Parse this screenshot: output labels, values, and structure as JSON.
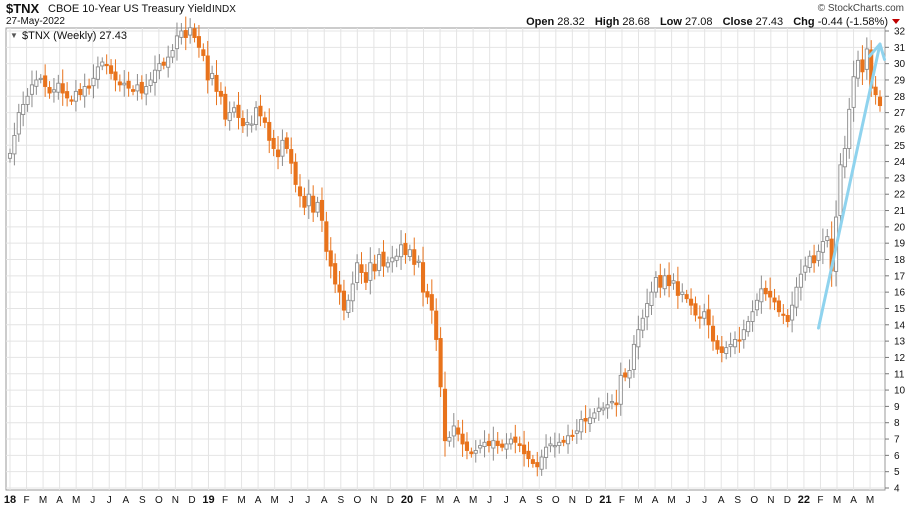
{
  "header": {
    "symbol": "$TNX",
    "name": "CBOE 10-Year US Treasury Yield",
    "exchange": "INDX",
    "date": "27-May-2022",
    "logo_text": "© StockCharts.com",
    "open_label": "Open",
    "open_value": "28.32",
    "high_label": "High",
    "high_value": "28.68",
    "low_label": "Low",
    "low_value": "27.08",
    "close_label": "Close",
    "close_value": "27.43",
    "chg_label": "Chg",
    "chg_value": "-0.44 (-1.58%)"
  },
  "legend": {
    "text": "$TNX (Weekly) 27.43"
  },
  "colors": {
    "up": "#8c8c8c",
    "down": "#e8731c",
    "arrow": "#8fd3ee",
    "grid": "#e4e4e4"
  },
  "chart_data": {
    "type": "candlestick",
    "title": "$TNX (Weekly) 27.43",
    "xlabel": "",
    "ylabel": "",
    "ylim": [
      4,
      32
    ],
    "y_ticks": [
      4,
      5,
      6,
      7,
      8,
      9,
      10,
      11,
      12,
      13,
      14,
      15,
      16,
      17,
      18,
      19,
      20,
      21,
      22,
      23,
      24,
      25,
      26,
      27,
      28,
      29,
      30,
      31,
      32
    ],
    "x_ticks": [
      {
        "label": "18",
        "pos": 0,
        "bold": true
      },
      {
        "label": "F",
        "pos": 1
      },
      {
        "label": "M",
        "pos": 2
      },
      {
        "label": "A",
        "pos": 3
      },
      {
        "label": "M",
        "pos": 4
      },
      {
        "label": "J",
        "pos": 5
      },
      {
        "label": "J",
        "pos": 6
      },
      {
        "label": "A",
        "pos": 7
      },
      {
        "label": "S",
        "pos": 8
      },
      {
        "label": "O",
        "pos": 9
      },
      {
        "label": "N",
        "pos": 10
      },
      {
        "label": "D",
        "pos": 11
      },
      {
        "label": "19",
        "pos": 12,
        "bold": true
      },
      {
        "label": "F",
        "pos": 13
      },
      {
        "label": "M",
        "pos": 14
      },
      {
        "label": "A",
        "pos": 15
      },
      {
        "label": "M",
        "pos": 16
      },
      {
        "label": "J",
        "pos": 17
      },
      {
        "label": "J",
        "pos": 18
      },
      {
        "label": "A",
        "pos": 19
      },
      {
        "label": "S",
        "pos": 20
      },
      {
        "label": "O",
        "pos": 21
      },
      {
        "label": "N",
        "pos": 22
      },
      {
        "label": "D",
        "pos": 23
      },
      {
        "label": "20",
        "pos": 24,
        "bold": true
      },
      {
        "label": "F",
        "pos": 25
      },
      {
        "label": "M",
        "pos": 26
      },
      {
        "label": "A",
        "pos": 27
      },
      {
        "label": "M",
        "pos": 28
      },
      {
        "label": "J",
        "pos": 29
      },
      {
        "label": "J",
        "pos": 30
      },
      {
        "label": "A",
        "pos": 31
      },
      {
        "label": "S",
        "pos": 32
      },
      {
        "label": "O",
        "pos": 33
      },
      {
        "label": "N",
        "pos": 34
      },
      {
        "label": "D",
        "pos": 35
      },
      {
        "label": "21",
        "pos": 36,
        "bold": true
      },
      {
        "label": "F",
        "pos": 37
      },
      {
        "label": "M",
        "pos": 38
      },
      {
        "label": "A",
        "pos": 39
      },
      {
        "label": "M",
        "pos": 40
      },
      {
        "label": "J",
        "pos": 41
      },
      {
        "label": "J",
        "pos": 42
      },
      {
        "label": "A",
        "pos": 43
      },
      {
        "label": "S",
        "pos": 44
      },
      {
        "label": "O",
        "pos": 45
      },
      {
        "label": "N",
        "pos": 46
      },
      {
        "label": "D",
        "pos": 47
      },
      {
        "label": "22",
        "pos": 48,
        "bold": true
      },
      {
        "label": "F",
        "pos": 49
      },
      {
        "label": "M",
        "pos": 50
      },
      {
        "label": "A",
        "pos": 51
      },
      {
        "label": "M",
        "pos": 52
      }
    ],
    "weekly_close": [
      24.5,
      25.6,
      27.0,
      27.5,
      28.0,
      28.7,
      29.0,
      29.1,
      28.6,
      28.2,
      28.4,
      28.8,
      28.2,
      27.9,
      27.7,
      28.3,
      28.1,
      28.6,
      28.5,
      29.1,
      29.8,
      30.1,
      29.9,
      29.4,
      29.0,
      28.7,
      28.8,
      28.5,
      28.3,
      28.7,
      28.2,
      28.6,
      29.0,
      29.6,
      30.0,
      29.9,
      30.4,
      30.8,
      31.7,
      32.0,
      31.6,
      32.2,
      31.6,
      31.0,
      30.5,
      29.0,
      29.4,
      28.3,
      28.0,
      26.6,
      27.0,
      27.3,
      26.7,
      26.2,
      26.4,
      26.3,
      27.3,
      26.8,
      26.4,
      25.3,
      24.8,
      24.3,
      25.3,
      24.8,
      23.9,
      22.6,
      21.9,
      21.2,
      22.0,
      20.9,
      21.5,
      20.4,
      18.5,
      17.6,
      16.5,
      16.0,
      14.9,
      15.5,
      16.5,
      17.8,
      17.2,
      16.6,
      17.8,
      17.3,
      18.3,
      17.6,
      17.8,
      18.1,
      18.2,
      18.9,
      18.3,
      18.6,
      17.7,
      17.9,
      16.0,
      15.7,
      14.9,
      13.1,
      10.2,
      6.9,
      7.1,
      7.8,
      7.3,
      6.7,
      6.3,
      6.1,
      6.3,
      6.6,
      6.8,
      6.6,
      6.9,
      6.6,
      6.5,
      6.7,
      7.0,
      6.8,
      6.6,
      6.1,
      5.8,
      5.5,
      5.3,
      5.9,
      6.5,
      6.7,
      6.6,
      6.8,
      6.8,
      7.2,
      7.2,
      7.5,
      8.2,
      8.1,
      8.3,
      8.6,
      8.9,
      8.9,
      9.1,
      9.3,
      9.1,
      10.9,
      10.8,
      11.2,
      12.8,
      13.7,
      14.4,
      15.3,
      16.0,
      16.9,
      16.3,
      17.0,
      16.4,
      16.7,
      15.8,
      16.0,
      15.6,
      15.2,
      14.6,
      14.4,
      14.8,
      14.0,
      13.0,
      12.5,
      12.3,
      12.6,
      12.8,
      13.1,
      13.0,
      13.7,
      14.2,
      14.8,
      15.5,
      16.2,
      15.9,
      15.7,
      15.4,
      14.8,
      14.6,
      14.2,
      15.2,
      16.3,
      17.1,
      17.6,
      18.2,
      17.8,
      18.5,
      19.1,
      19.4,
      17.3,
      20.6,
      23.8,
      24.8,
      27.2,
      29.2,
      30.2,
      29.5,
      30.9,
      28.5,
      28.1,
      27.43
    ],
    "arrow": {
      "from": {
        "week": 184,
        "value": 13.8
      },
      "to": {
        "week": 198,
        "value": 31.2
      }
    }
  }
}
